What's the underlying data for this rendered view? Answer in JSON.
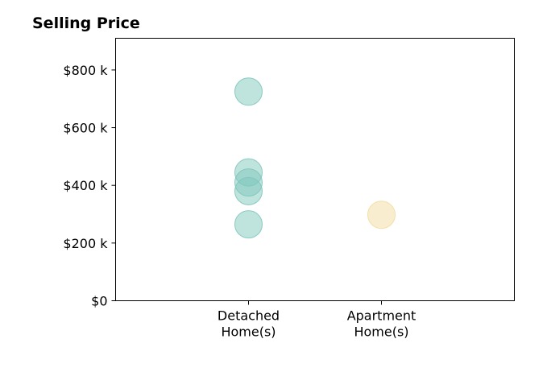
{
  "chart_data": {
    "type": "scatter",
    "title": "Selling Price",
    "xlabel": "",
    "ylabel": "",
    "categories": [
      [
        "Detached",
        "Home(s)"
      ],
      [
        "Apartment",
        "Home(s)"
      ]
    ],
    "xlim": [
      -1,
      2
    ],
    "ylim": [
      0,
      910000
    ],
    "yticks": [
      {
        "value": 0,
        "label": "$0"
      },
      {
        "value": 200000,
        "label": "$200 k"
      },
      {
        "value": 400000,
        "label": "$400 k"
      },
      {
        "value": 600000,
        "label": "$600 k"
      },
      {
        "value": 800000,
        "label": "$800 k"
      }
    ],
    "grid": false,
    "legend": "none",
    "points": [
      {
        "category": 0,
        "value": 725000,
        "color": "#7fc7bc"
      },
      {
        "category": 0,
        "value": 445000,
        "color": "#7fc7bc"
      },
      {
        "category": 0,
        "value": 410000,
        "color": "#7fc7bc"
      },
      {
        "category": 0,
        "value": 380000,
        "color": "#7fc7bc"
      },
      {
        "category": 0,
        "value": 265000,
        "color": "#7fc7bc"
      },
      {
        "category": 1,
        "value": 298000,
        "color": "#f4dca2"
      }
    ],
    "marker_opacity": 0.5
  }
}
